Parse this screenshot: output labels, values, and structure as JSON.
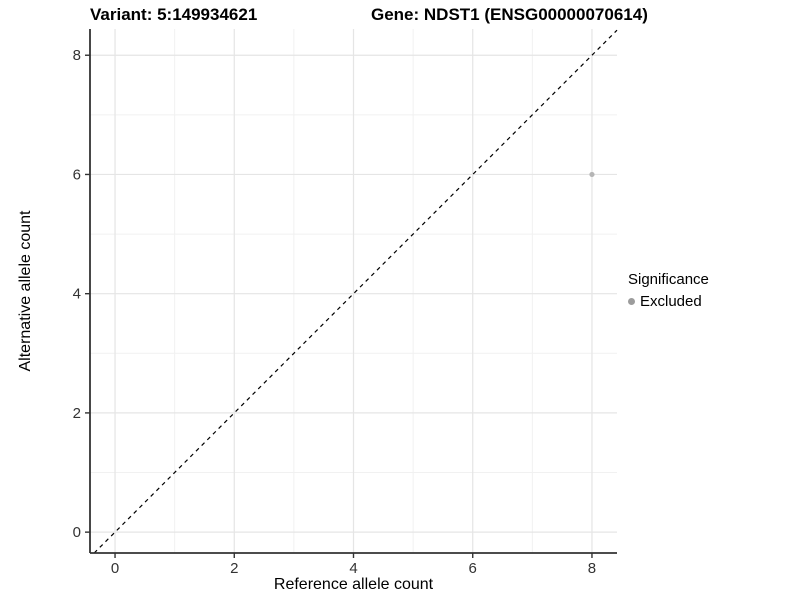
{
  "chart_data": {
    "type": "scatter",
    "titles": {
      "variant": "Variant: 5:149934621",
      "gene": "Gene: NDST1 (ENSG00000070614)"
    },
    "xlabel": "Reference allele count",
    "ylabel": "Alternative allele count",
    "xlim": [
      -0.42,
      8.42
    ],
    "ylim": [
      -0.35,
      8.44
    ],
    "x_major_ticks": [
      0,
      2,
      4,
      6,
      8
    ],
    "y_major_ticks": [
      0,
      2,
      4,
      6,
      8
    ],
    "x_minor_ticks": [
      1,
      3,
      5,
      7
    ],
    "y_minor_ticks": [
      1,
      3,
      5,
      7
    ],
    "grid": true,
    "series": [
      {
        "name": "Excluded",
        "color": "#b5b5b5",
        "point_radius": 2.6,
        "points": [
          {
            "x": 8,
            "y": 6
          }
        ]
      }
    ],
    "reference_line": {
      "type": "identity",
      "slope": 1,
      "intercept": 0,
      "style": "dashed",
      "color": "#000000"
    },
    "legend": {
      "title": "Significance",
      "position": "right",
      "entries": [
        {
          "label": "Excluded",
          "color": "#9c9c9c"
        }
      ]
    },
    "colors": {
      "grid_major": "#e5e5e5",
      "grid_minor": "#f1f1f1",
      "axis_line": "#333333",
      "tick_mark": "#333333",
      "tick_label": "#333333",
      "background": "#ffffff"
    }
  }
}
